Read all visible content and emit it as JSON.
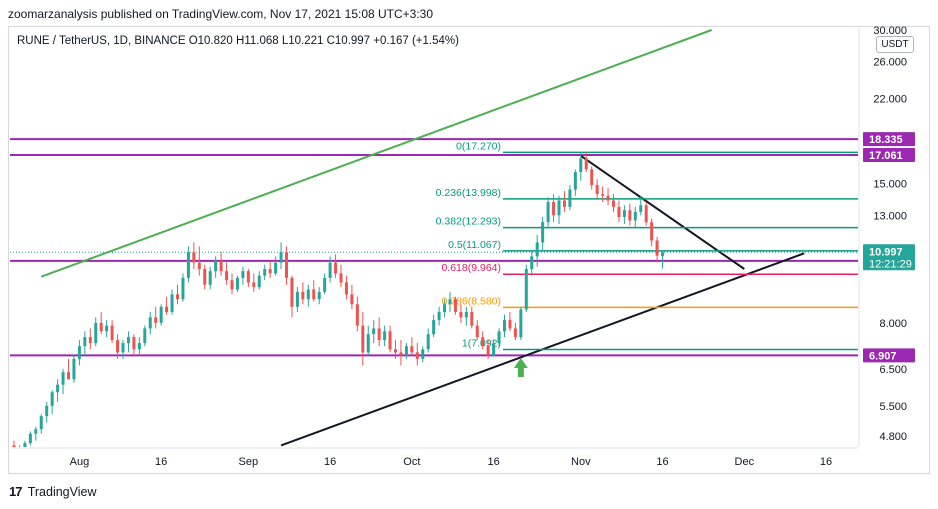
{
  "header": {
    "publisher_text": "zoomarzanalysis published on TradingView.com, Nov 17, 2021 15:08 UTC+3:30",
    "symbol_info": "RUNE / TetherUS, 1D, BINANCE  O10.820  H11.068  L10.221  C10.997  +0.167 (+1.54%)",
    "currency": "USDT"
  },
  "footer": {
    "logo_icon": "tradingview-logo-icon",
    "brand": "TradingView"
  },
  "colors": {
    "up": "#26a69a",
    "down": "#ef5350",
    "purple": "#9c27b0",
    "green_line": "#4caf50",
    "fib_teal": "#089981",
    "fib_red": "#e91e63",
    "fib_orange": "#ff9800",
    "black": "#131722",
    "arrow": "#4caf50"
  },
  "chart_data": {
    "type": "candlestick",
    "y_scale": "log",
    "price_ticks": [
      "30.000",
      "26.000",
      "22.000",
      "15.000",
      "13.000",
      "8.000",
      "6.500",
      "5.500",
      "4.800"
    ],
    "x_ticks": [
      "Aug",
      "16",
      "Sep",
      "16",
      "Oct",
      "16",
      "Nov",
      "16",
      "Dec",
      "16"
    ],
    "horizontal_levels": [
      {
        "price": 18.335,
        "label": "18.335"
      },
      {
        "price": 17.061,
        "label": "17.061"
      },
      {
        "price": 10.584,
        "label": "10.584"
      },
      {
        "price": 6.907,
        "label": "6.907"
      }
    ],
    "current_price": {
      "label": "10.997",
      "countdown": "12:21:29"
    },
    "fibonacci": [
      {
        "label": "0(17.270)",
        "price": 17.27
      },
      {
        "label": "0.236(13.998)",
        "price": 13.998
      },
      {
        "label": "0.382(12.293)",
        "price": 12.293
      },
      {
        "label": "0.5(11.067)",
        "price": 11.067
      },
      {
        "label": "0.618(9.964)",
        "price": 9.964
      },
      {
        "label": "0.786(8.580)",
        "price": 8.58
      },
      {
        "label": "1(7.092)",
        "price": 7.092
      }
    ],
    "trendlines": [
      {
        "name": "ascending-channel-top",
        "from": [
          "2021-07-25",
          9.85
        ],
        "to": [
          "2021-11-25",
          30.0
        ]
      },
      {
        "name": "ascending-support",
        "from": [
          "2021-09-07",
          4.6
        ],
        "to": [
          "2021-12-12",
          10.95
        ]
      },
      {
        "name": "descending-resistance",
        "from": [
          "2021-11-01",
          17.0
        ],
        "to": [
          "2021-12-01",
          10.2
        ]
      }
    ],
    "arrow_date": "2021-10-21",
    "candles": {
      "start_date": "2021-07-20",
      "days": [
        [
          4.6,
          4.7,
          4.4,
          4.5
        ],
        [
          4.5,
          4.6,
          4.3,
          4.45
        ],
        [
          4.45,
          4.7,
          4.4,
          4.65
        ],
        [
          4.65,
          4.9,
          4.6,
          4.85
        ],
        [
          4.85,
          5.0,
          4.7,
          4.95
        ],
        [
          4.95,
          5.3,
          4.85,
          5.25
        ],
        [
          5.25,
          5.6,
          5.1,
          5.5
        ],
        [
          5.5,
          5.9,
          5.3,
          5.85
        ],
        [
          5.85,
          6.2,
          5.6,
          6.05
        ],
        [
          6.05,
          6.5,
          5.8,
          6.4
        ],
        [
          6.4,
          6.8,
          6.2,
          6.2
        ],
        [
          6.2,
          6.9,
          6.1,
          6.8
        ],
        [
          6.8,
          7.4,
          6.6,
          7.2
        ],
        [
          7.2,
          7.7,
          6.9,
          7.5
        ],
        [
          7.5,
          7.8,
          7.1,
          7.3
        ],
        [
          7.3,
          8.2,
          7.2,
          8.0
        ],
        [
          8.0,
          8.4,
          7.6,
          7.7
        ],
        [
          7.7,
          8.1,
          7.5,
          7.9
        ],
        [
          7.9,
          8.1,
          7.3,
          7.4
        ],
        [
          7.4,
          7.6,
          6.8,
          7.0
        ],
        [
          7.0,
          7.4,
          6.8,
          7.3
        ],
        [
          7.3,
          7.7,
          7.0,
          7.5
        ],
        [
          7.5,
          7.6,
          6.9,
          7.1
        ],
        [
          7.1,
          7.5,
          6.9,
          7.3
        ],
        [
          7.3,
          7.9,
          7.2,
          7.8
        ],
        [
          7.8,
          8.4,
          7.6,
          8.2
        ],
        [
          8.2,
          8.6,
          7.8,
          8.0
        ],
        [
          8.0,
          8.7,
          7.9,
          8.6
        ],
        [
          8.6,
          9.0,
          8.3,
          8.4
        ],
        [
          8.4,
          9.3,
          8.3,
          9.1
        ],
        [
          9.1,
          9.5,
          8.7,
          8.9
        ],
        [
          8.9,
          10.0,
          8.8,
          9.8
        ],
        [
          9.8,
          11.3,
          9.6,
          11.0
        ],
        [
          11.0,
          11.5,
          10.2,
          10.5
        ],
        [
          10.5,
          11.3,
          9.9,
          10.2
        ],
        [
          10.2,
          10.4,
          9.3,
          9.5
        ],
        [
          9.5,
          10.3,
          9.3,
          10.1
        ],
        [
          10.1,
          10.8,
          9.8,
          10.6
        ],
        [
          10.6,
          11.0,
          9.9,
          10.1
        ],
        [
          10.1,
          10.5,
          9.5,
          9.7
        ],
        [
          9.7,
          10.0,
          9.1,
          9.3
        ],
        [
          9.3,
          9.9,
          9.2,
          9.8
        ],
        [
          9.8,
          10.3,
          9.5,
          10.1
        ],
        [
          10.1,
          10.2,
          9.4,
          9.6
        ],
        [
          9.6,
          10.0,
          9.2,
          9.4
        ],
        [
          9.4,
          10.1,
          9.3,
          9.9
        ],
        [
          9.9,
          10.4,
          9.7,
          10.2
        ],
        [
          10.2,
          10.6,
          9.8,
          10.0
        ],
        [
          10.0,
          10.8,
          9.9,
          10.5
        ],
        [
          10.5,
          11.5,
          10.2,
          11.0
        ],
        [
          11.0,
          11.3,
          9.5,
          9.8
        ],
        [
          9.8,
          9.9,
          8.2,
          8.6
        ],
        [
          8.6,
          9.4,
          8.4,
          9.2
        ],
        [
          9.2,
          9.6,
          8.7,
          8.9
        ],
        [
          8.9,
          9.5,
          8.6,
          9.3
        ],
        [
          9.3,
          9.7,
          8.8,
          8.9
        ],
        [
          8.9,
          9.4,
          8.7,
          9.2
        ],
        [
          9.2,
          10.0,
          9.1,
          9.8
        ],
        [
          9.8,
          10.8,
          9.6,
          10.5
        ],
        [
          10.5,
          10.9,
          9.8,
          10.0
        ],
        [
          10.0,
          10.4,
          9.4,
          9.6
        ],
        [
          9.6,
          9.9,
          8.9,
          9.1
        ],
        [
          9.1,
          9.5,
          8.5,
          8.7
        ],
        [
          8.7,
          9.0,
          7.7,
          7.9
        ],
        [
          7.9,
          8.4,
          6.6,
          7.0
        ],
        [
          7.0,
          7.9,
          6.9,
          7.6
        ],
        [
          7.6,
          8.1,
          7.3,
          7.8
        ],
        [
          7.8,
          8.2,
          7.2,
          7.4
        ],
        [
          7.4,
          7.9,
          7.2,
          7.7
        ],
        [
          7.7,
          7.9,
          7.0,
          7.1
        ],
        [
          7.1,
          7.4,
          6.8,
          7.0
        ],
        [
          7.0,
          7.4,
          6.6,
          6.9
        ],
        [
          6.9,
          7.3,
          6.8,
          7.2
        ],
        [
          7.2,
          7.5,
          6.9,
          7.0
        ],
        [
          7.0,
          7.3,
          6.6,
          6.8
        ],
        [
          6.8,
          7.2,
          6.7,
          7.1
        ],
        [
          7.1,
          7.8,
          7.0,
          7.6
        ],
        [
          7.6,
          8.3,
          7.5,
          8.1
        ],
        [
          8.1,
          8.6,
          7.9,
          8.4
        ],
        [
          8.4,
          8.9,
          8.2,
          8.7
        ],
        [
          8.7,
          9.2,
          8.4,
          8.9
        ],
        [
          8.9,
          9.0,
          8.3,
          8.4
        ],
        [
          8.4,
          8.7,
          8.0,
          8.2
        ],
        [
          8.2,
          8.6,
          7.9,
          8.4
        ],
        [
          8.4,
          8.6,
          7.8,
          7.9
        ],
        [
          7.9,
          8.1,
          7.4,
          7.5
        ],
        [
          7.5,
          7.7,
          7.1,
          7.2
        ],
        [
          7.2,
          7.4,
          6.8,
          6.9
        ],
        [
          6.9,
          7.4,
          6.9,
          7.3
        ],
        [
          7.3,
          7.8,
          7.2,
          7.7
        ],
        [
          7.7,
          8.3,
          7.5,
          8.1
        ],
        [
          8.1,
          8.4,
          7.7,
          7.8
        ],
        [
          7.8,
          8.0,
          7.4,
          7.5
        ],
        [
          7.5,
          8.6,
          7.4,
          8.5
        ],
        [
          8.5,
          10.4,
          8.4,
          10.2
        ],
        [
          10.2,
          11.1,
          9.9,
          10.8
        ],
        [
          10.8,
          11.9,
          10.3,
          11.5
        ],
        [
          11.5,
          12.9,
          11.1,
          12.6
        ],
        [
          12.6,
          14.1,
          12.3,
          13.8
        ],
        [
          13.8,
          14.3,
          12.6,
          13.0
        ],
        [
          13.0,
          14.2,
          12.5,
          13.9
        ],
        [
          13.9,
          14.5,
          13.2,
          13.5
        ],
        [
          13.5,
          14.9,
          13.3,
          14.6
        ],
        [
          14.6,
          16.0,
          14.2,
          15.8
        ],
        [
          15.8,
          17.3,
          15.2,
          16.8
        ],
        [
          16.8,
          17.27,
          15.8,
          16.0
        ],
        [
          16.0,
          16.2,
          14.6,
          14.9
        ],
        [
          14.9,
          15.3,
          14.0,
          14.3
        ],
        [
          14.3,
          14.8,
          13.8,
          14.2
        ],
        [
          14.2,
          14.7,
          13.6,
          13.9
        ],
        [
          13.9,
          14.3,
          13.2,
          13.5
        ],
        [
          13.5,
          13.9,
          12.6,
          12.9
        ],
        [
          12.9,
          13.6,
          12.5,
          13.3
        ],
        [
          13.3,
          13.7,
          12.4,
          12.7
        ],
        [
          12.7,
          13.5,
          12.3,
          13.2
        ],
        [
          13.2,
          14.2,
          13.0,
          13.6
        ],
        [
          13.6,
          13.8,
          12.4,
          12.6
        ],
        [
          12.6,
          12.8,
          11.3,
          11.6
        ],
        [
          11.6,
          11.8,
          10.5,
          10.83
        ],
        [
          10.82,
          11.07,
          10.22,
          11.0
        ]
      ]
    }
  }
}
